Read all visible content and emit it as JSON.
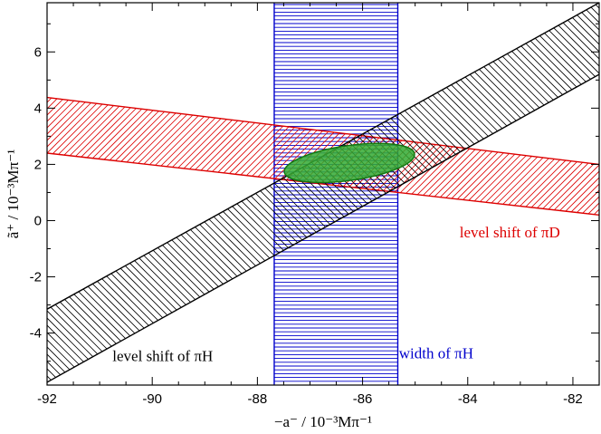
{
  "chart_data": {
    "type": "area",
    "title": "",
    "xlabel": "−a⁻ / 10⁻³Mπ⁻¹",
    "ylabel": "ã⁺ / 10⁻³Mπ⁻¹",
    "xlim": [
      -92,
      -81.5
    ],
    "ylim": [
      -5.85,
      7.75
    ],
    "xticks": [
      -92,
      -90,
      -88,
      -86,
      -84,
      -82
    ],
    "yticks": [
      -4,
      -2,
      0,
      2,
      4,
      6
    ],
    "grid": false,
    "series": [
      {
        "name": "width of πH",
        "kind": "vertical-band",
        "x_range": [
          -87.68,
          -85.33
        ],
        "hatch": "horizontal",
        "color": "#0000cc"
      },
      {
        "name": "level shift of πD",
        "kind": "slanted-band",
        "upper_line": [
          [
            -92,
            4.38
          ],
          [
            -81.5,
            2.0
          ]
        ],
        "lower_line": [
          [
            -92,
            2.4
          ],
          [
            -81.5,
            0.2
          ]
        ],
        "hatch": "diagonal",
        "color": "#dd0000"
      },
      {
        "name": "level shift of πH",
        "kind": "slanted-band",
        "upper_line": [
          [
            -92,
            -3.15
          ],
          [
            -81.5,
            7.75
          ]
        ],
        "lower_line": [
          [
            -92,
            -5.75
          ],
          [
            -81.5,
            5.2
          ]
        ],
        "hatch": "diagonal",
        "color": "#000000"
      },
      {
        "name": "",
        "kind": "ellipse",
        "center": [
          -86.25,
          2.05
        ],
        "semi_axis_x": 1.25,
        "semi_axis_y": 0.62,
        "rotation_deg": 8,
        "color": "#22aa22"
      }
    ],
    "annotations": [
      {
        "text": "level shift of πD",
        "x": -83.2,
        "y": -0.6,
        "color": "#dd0000"
      },
      {
        "text": "width of πH",
        "x": -84.6,
        "y": -4.9,
        "color": "#0000cc"
      },
      {
        "text": "level shift of πH",
        "x": -89.8,
        "y": -5.0,
        "color": "#000000"
      }
    ]
  }
}
